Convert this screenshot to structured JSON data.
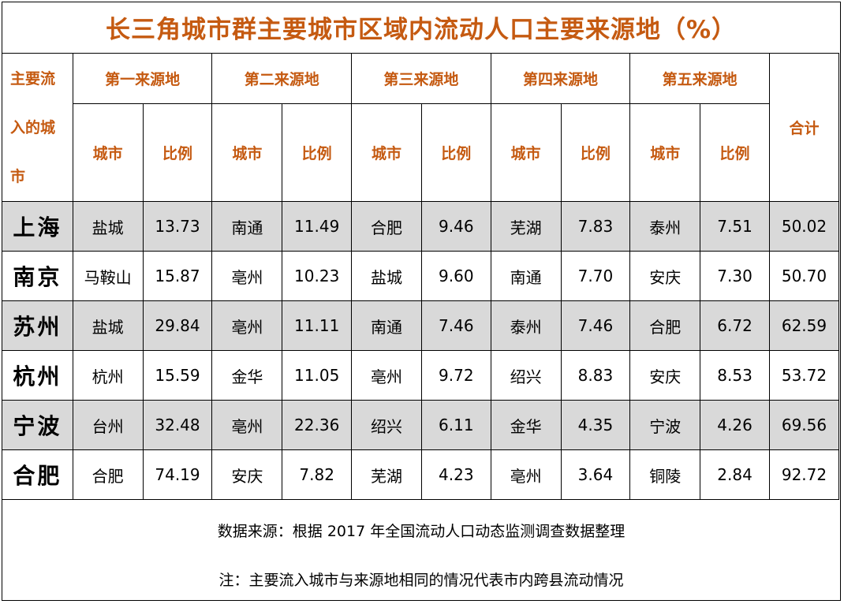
{
  "title": "长三角城市群主要城市区域内流动人口主要来源地（%）",
  "header": {
    "corner": [
      "主要流",
      "入的城",
      "市"
    ],
    "groups": [
      "第一来源地",
      "第二来源地",
      "第三来源地",
      "第四来源地",
      "第五来源地"
    ],
    "city_label": "城市",
    "ratio_label": "比例",
    "total_label": "合计"
  },
  "rows": [
    {
      "city": "上海",
      "cells": [
        "盐城",
        "13.73",
        "南通",
        "11.49",
        "合肥",
        "9.46",
        "芜湖",
        "7.83",
        "泰州",
        "7.51"
      ],
      "total": "50.02",
      "shaded": true
    },
    {
      "city": "南京",
      "cells": [
        "马鞍山",
        "15.87",
        "亳州",
        "10.23",
        "盐城",
        "9.60",
        "南通",
        "7.70",
        "安庆",
        "7.30"
      ],
      "total": "50.70",
      "shaded": false
    },
    {
      "city": "苏州",
      "cells": [
        "盐城",
        "29.84",
        "亳州",
        "11.11",
        "南通",
        "7.46",
        "泰州",
        "7.46",
        "合肥",
        "6.72"
      ],
      "total": "62.59",
      "shaded": true
    },
    {
      "city": "杭州",
      "cells": [
        "杭州",
        "15.59",
        "金华",
        "11.05",
        "亳州",
        "9.72",
        "绍兴",
        "8.83",
        "安庆",
        "8.53"
      ],
      "total": "53.72",
      "shaded": false
    },
    {
      "city": "宁波",
      "cells": [
        "台州",
        "32.48",
        "亳州",
        "22.36",
        "绍兴",
        "6.11",
        "金华",
        "4.35",
        "宁波",
        "4.26"
      ],
      "total": "69.56",
      "shaded": true
    },
    {
      "city": "合肥",
      "cells": [
        "合肥",
        "74.19",
        "安庆",
        "7.82",
        "芜湖",
        "4.23",
        "亳州",
        "3.64",
        "铜陵",
        "2.84"
      ],
      "total": "92.72",
      "shaded": false
    }
  ],
  "notes": {
    "source": "数据来源：根据 2017 年全国流动人口动态监测调查数据整理",
    "note": "注：主要流入城市与来源地相同的情况代表市内跨县流动情况"
  }
}
